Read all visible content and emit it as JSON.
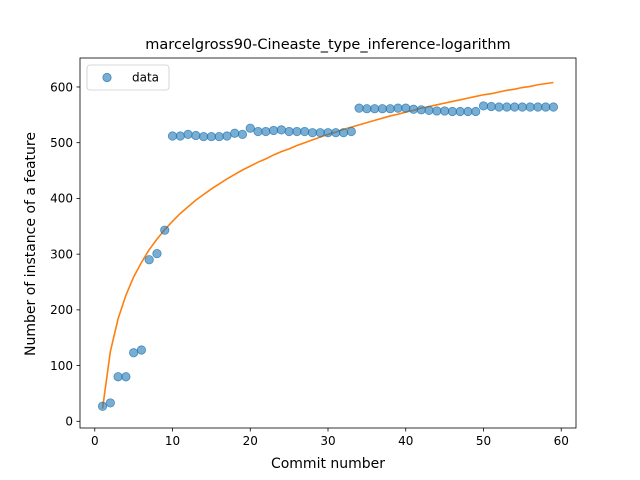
{
  "chart_data": {
    "type": "scatter",
    "title": "marcelgross90-Cineaste_type_inference-logarithm",
    "xlabel": "Commit number",
    "ylabel": "Number of instance of a feature",
    "xlim": [
      -1.9,
      61.9
    ],
    "ylim": [
      -12,
      652
    ],
    "xticks": [
      0,
      10,
      20,
      30,
      40,
      50,
      60
    ],
    "yticks": [
      0,
      100,
      200,
      300,
      400,
      500,
      600
    ],
    "grid": false,
    "legend": {
      "placement": "top-left",
      "entries": [
        "data"
      ]
    },
    "colors": {
      "data": "#1f77b4",
      "fit": "#ff7f0e"
    },
    "series": [
      {
        "name": "data",
        "kind": "scatter",
        "x": [
          1,
          2,
          3,
          4,
          5,
          6,
          7,
          8,
          9,
          10,
          11,
          12,
          13,
          14,
          15,
          16,
          17,
          18,
          19,
          20,
          21,
          22,
          23,
          24,
          25,
          26,
          27,
          28,
          29,
          30,
          31,
          32,
          33,
          34,
          35,
          36,
          37,
          38,
          39,
          40,
          41,
          42,
          43,
          44,
          45,
          46,
          47,
          48,
          49,
          50,
          51,
          52,
          53,
          54,
          55,
          56,
          57,
          58,
          59
        ],
        "y": [
          27,
          33,
          80,
          80,
          123,
          128,
          290,
          301,
          343,
          512,
          512,
          515,
          513,
          511,
          511,
          511,
          512,
          517,
          515,
          526,
          520,
          520,
          522,
          523,
          520,
          520,
          520,
          518,
          518,
          518,
          518,
          518,
          520,
          562,
          561,
          561,
          561,
          561,
          562,
          562,
          560,
          559,
          558,
          557,
          557,
          556,
          556,
          556,
          556,
          566,
          565,
          564,
          564,
          564,
          564,
          564,
          564,
          564,
          564
        ]
      },
      {
        "kind": "line",
        "x": [
          1,
          2,
          3,
          4,
          5,
          6,
          7,
          8,
          9,
          10,
          11,
          12,
          13,
          14,
          15,
          16,
          17,
          18,
          19,
          20,
          21,
          22,
          23,
          24,
          25,
          26,
          27,
          28,
          29,
          30,
          31,
          32,
          33,
          34,
          35,
          36,
          37,
          38,
          39,
          40,
          41,
          42,
          43,
          44,
          45,
          46,
          47,
          48,
          49,
          50,
          51,
          52,
          53,
          54,
          55,
          56,
          57,
          58,
          59
        ],
        "y": [
          23,
          125,
          184,
          226,
          259,
          285,
          308,
          327,
          344,
          359,
          373,
          385,
          397,
          407,
          417,
          426,
          435,
          443,
          451,
          458,
          465,
          471,
          478,
          484,
          489,
          495,
          500,
          505,
          510,
          515,
          519,
          524,
          528,
          532,
          536,
          540,
          544,
          548,
          551,
          555,
          558,
          562,
          565,
          568,
          571,
          574,
          577,
          580,
          583,
          586,
          588,
          591,
          594,
          596,
          599,
          601,
          604,
          606,
          608
        ]
      }
    ]
  }
}
